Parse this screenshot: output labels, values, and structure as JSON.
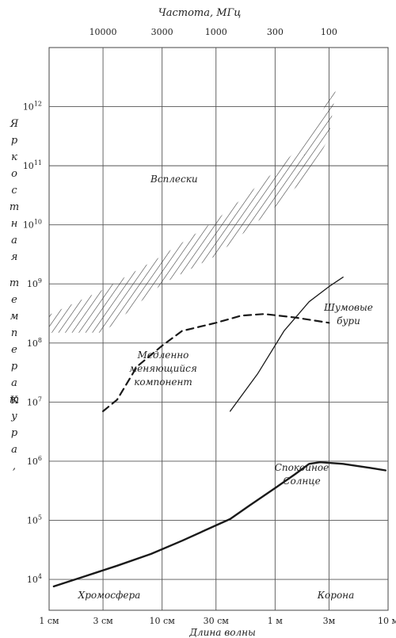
{
  "chart_data": {
    "type": "line",
    "top_axis": {
      "label": "Частота, МГц",
      "ticks": [
        {
          "label": "10000",
          "wavelength_cm": 3
        },
        {
          "label": "3000",
          "wavelength_cm": 10
        },
        {
          "label": "1000",
          "wavelength_cm": 30
        },
        {
          "label": "300",
          "wavelength_cm": 100
        },
        {
          "label": "100",
          "wavelength_cm": 300
        }
      ]
    },
    "x_axis": {
      "label": "Длина волны",
      "scale": "log",
      "range_cm": [
        1,
        1000
      ],
      "ticks": [
        {
          "label": "1 см",
          "cm": 1
        },
        {
          "label": "3 см",
          "cm": 3
        },
        {
          "label": "10 см",
          "cm": 10
        },
        {
          "label": "30 см",
          "cm": 30
        },
        {
          "label": "1 м",
          "cm": 100
        },
        {
          "label": "3м",
          "cm": 300
        },
        {
          "label": "10 м",
          "cm": 1000
        }
      ]
    },
    "y_axis": {
      "label": "Яркостная температура, К",
      "label_lines": [
        "Яркостная",
        "температура,",
        "К"
      ],
      "scale": "log",
      "range_K": [
        3000,
        10000000000000.0
      ],
      "ticks": [
        {
          "base": "10",
          "exp": "4",
          "value": 10000
        },
        {
          "base": "10",
          "exp": "5",
          "value": 100000
        },
        {
          "base": "10",
          "exp": "6",
          "value": 1000000
        },
        {
          "base": "10",
          "exp": "7",
          "value": 10000000
        },
        {
          "base": "10",
          "exp": "8",
          "value": 100000000
        },
        {
          "base": "10",
          "exp": "9",
          "value": 1000000000
        },
        {
          "base": "10",
          "exp": "10",
          "value": 10000000000
        },
        {
          "base": "10",
          "exp": "11",
          "value": 100000000000
        },
        {
          "base": "10",
          "exp": "12",
          "value": 1000000000000
        }
      ]
    },
    "grid": true,
    "series": [
      {
        "name": "Спокойное Солнце",
        "style": "solid-thick",
        "points": [
          [
            1.1,
            7600
          ],
          [
            2,
            11000
          ],
          [
            4,
            17000
          ],
          [
            8,
            27000
          ],
          [
            15,
            45000
          ],
          [
            30,
            82000
          ],
          [
            40,
            105000
          ],
          [
            60,
            180000
          ],
          [
            100,
            350000
          ],
          [
            150,
            600000
          ],
          [
            200,
            900000
          ],
          [
            250,
            960000
          ],
          [
            400,
            900000
          ],
          [
            700,
            770000
          ],
          [
            950,
            700000
          ]
        ]
      },
      {
        "name": "Медленно меняющийся компонент",
        "style": "dashed",
        "points": [
          [
            3,
            7000000
          ],
          [
            4,
            11000000
          ],
          [
            6,
            40000000
          ],
          [
            10,
            90000000
          ],
          [
            15,
            160000000
          ],
          [
            30,
            220000000
          ],
          [
            50,
            290000000
          ],
          [
            80,
            310000000
          ],
          [
            150,
            270000000
          ],
          [
            300,
            220000000
          ]
        ]
      },
      {
        "name": "Шумовые бури",
        "style": "solid-thin",
        "points": [
          [
            40,
            7000000
          ],
          [
            70,
            30000000
          ],
          [
            120,
            160000000
          ],
          [
            200,
            500000000
          ],
          [
            300,
            900000000
          ],
          [
            400,
            1300000000
          ]
        ]
      }
    ],
    "bands": [
      {
        "name": "Всплески",
        "style": "hatched",
        "lower": [
          [
            1,
            150000000
          ],
          [
            3,
            150000000
          ],
          [
            10,
            1000000000
          ],
          [
            30,
            3000000000
          ],
          [
            100,
            20000000000
          ],
          [
            200,
            70000000000
          ],
          [
            300,
            300000000000
          ]
        ],
        "upper": [
          [
            1,
            300000000
          ],
          [
            3,
            800000000
          ],
          [
            10,
            3000000000
          ],
          [
            30,
            12000000000
          ],
          [
            100,
            80000000000
          ],
          [
            200,
            300000000000
          ],
          [
            350,
            2500000000000
          ]
        ]
      }
    ],
    "annotations": [
      {
        "text": "Всплески",
        "lines": [
          "Всплески"
        ]
      },
      {
        "text": "Медленно меняющийся компонент",
        "lines": [
          "Медленно",
          "меняющийся",
          "компонент"
        ]
      },
      {
        "text": "Шумовые бури",
        "lines": [
          "Шумовые",
          "бури"
        ]
      },
      {
        "text": "Спокойное Солнце",
        "lines": [
          "Спокойное",
          "Солнце"
        ]
      },
      {
        "text": "Хромосфера",
        "lines": [
          "Хромосфера"
        ]
      },
      {
        "text": "Корона",
        "lines": [
          "Корона"
        ]
      }
    ]
  }
}
